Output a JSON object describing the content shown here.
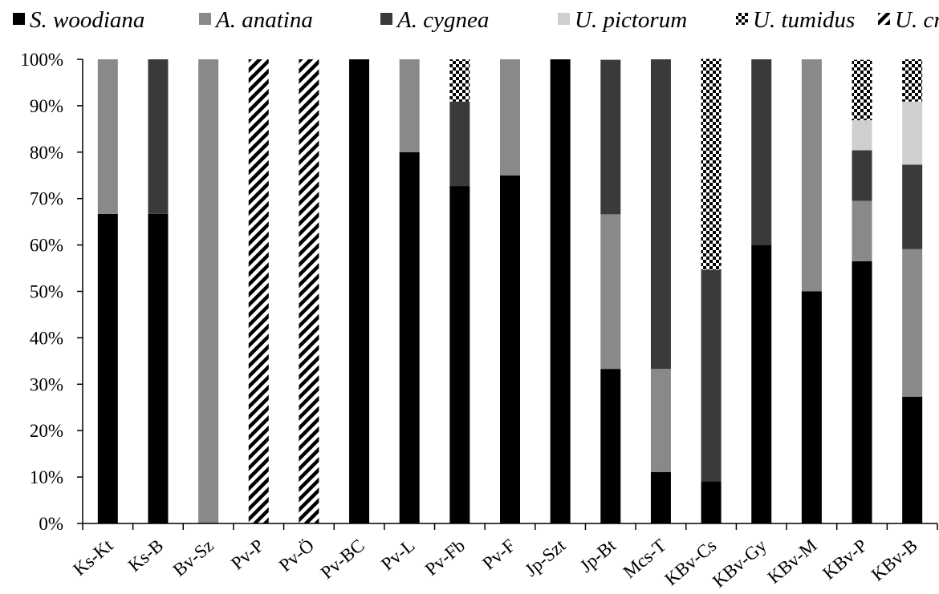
{
  "chart_data": {
    "type": "bar",
    "stacked": true,
    "title": "",
    "xlabel": "",
    "ylabel": "",
    "ylim": [
      0,
      100
    ],
    "yticks": [
      "0%",
      "10%",
      "20%",
      "30%",
      "40%",
      "50%",
      "60%",
      "70%",
      "80%",
      "90%",
      "100%"
    ],
    "legend_position": "top",
    "categories": [
      "Ks-Kt",
      "Ks-B",
      "Bv-Sz",
      "Pv-P",
      "Pv-Ö",
      "Pv-BC",
      "Pv-L",
      "Pv-Fb",
      "Pv-F",
      "Jp-Szt",
      "Jp-Bt",
      "Mcs-T",
      "KBv-Cs",
      "KBv-Gy",
      "KBv-M",
      "KBv-P",
      "KBv-B"
    ],
    "series": [
      {
        "name": "S. woodiana",
        "fill": "solid",
        "color": "#000000",
        "values": [
          66.7,
          66.7,
          0,
          0,
          0,
          100,
          80,
          72.7,
          75,
          100,
          33.3,
          11.1,
          9.1,
          60,
          50,
          56.5,
          27.3
        ]
      },
      {
        "name": "A. anatina",
        "fill": "solid",
        "color": "#898989",
        "values": [
          33.3,
          0,
          100,
          0,
          0,
          0,
          20,
          0,
          25,
          0,
          33.3,
          22.2,
          0,
          0,
          50,
          13.0,
          31.8
        ]
      },
      {
        "name": "A. cygnea",
        "fill": "solid",
        "color": "#3a3a3a",
        "values": [
          0,
          33.3,
          0,
          0,
          0,
          0,
          0,
          18.2,
          0,
          0,
          33.3,
          66.7,
          45.5,
          40,
          0,
          10.9,
          18.2
        ]
      },
      {
        "name": "U. pictorum",
        "fill": "solid",
        "color": "#cfcfcf",
        "values": [
          0,
          0,
          0,
          0,
          0,
          0,
          0,
          0,
          0,
          0,
          0,
          0,
          0,
          0,
          0,
          6.5,
          13.6
        ]
      },
      {
        "name": "U. tumidus",
        "fill": "checker",
        "color": "#000000",
        "values": [
          0,
          0,
          0,
          0,
          0,
          0,
          0,
          9.1,
          0,
          0,
          0,
          0,
          45.5,
          0,
          0,
          13.0,
          9.1
        ]
      },
      {
        "name": "U. crassus",
        "fill": "diagonal",
        "color": "#000000",
        "values": [
          0,
          0,
          0,
          100,
          100,
          0,
          0,
          0,
          0,
          0,
          0,
          0,
          0,
          0,
          0,
          0,
          0
        ]
      }
    ]
  }
}
